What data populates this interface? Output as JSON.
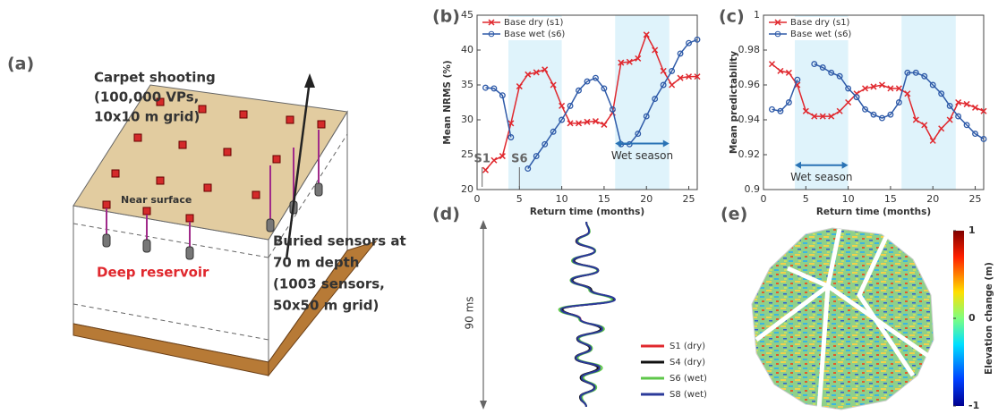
{
  "panel_a": {
    "label": "(a)",
    "shooting": [
      "Carpet shooting",
      "(100,000 VPs,",
      "10x10 m grid)"
    ],
    "near_surface": "Near surface",
    "deep_reservoir": "Deep reservoir",
    "buried": [
      "Buried sensors at",
      "70 m depth",
      "(1003 sensors,",
      "50x50 m grid)"
    ]
  },
  "chart_data": [
    {
      "type": "line",
      "label": "(b)",
      "xlabel": "Return time (months)",
      "ylabel": "Mean NRMS (%)",
      "x": [
        1,
        2,
        3,
        4,
        5,
        6,
        7,
        8,
        9,
        10,
        11,
        12,
        13,
        14,
        15,
        16,
        17,
        18,
        19,
        20,
        21,
        22,
        23,
        24,
        25,
        26
      ],
      "xlim": [
        0,
        26
      ],
      "xticks": [
        0,
        5,
        10,
        15,
        20,
        25
      ],
      "ylim": [
        20,
        45
      ],
      "yticks": [
        20,
        25,
        30,
        35,
        40,
        45
      ],
      "shaded": [
        [
          3.7,
          10
        ],
        [
          16.3,
          22.7
        ]
      ],
      "shade_color": "#dff3fb",
      "annotations": [
        "S1",
        "S6",
        "Wet season"
      ],
      "series": [
        {
          "name": "Base dry (s1)",
          "color": "#e0282e",
          "marker": "x",
          "values": [
            22.8,
            24.2,
            24.8,
            29.5,
            34.8,
            36.5,
            36.8,
            37.2,
            35,
            32,
            29.5,
            29.5,
            29.7,
            29.8,
            29.3,
            31,
            38.2,
            38.3,
            38.8,
            42.2,
            40,
            37,
            35,
            36,
            36.2,
            36.2
          ]
        },
        {
          "name": "Base wet (s6)",
          "color": "#2e5aa8",
          "marker": "o",
          "values": [
            34.6,
            34.5,
            33.5,
            27.5,
            null,
            23,
            24.8,
            26.5,
            28.3,
            30,
            32,
            34.2,
            35.5,
            36,
            34.5,
            31.5,
            26.5,
            26.5,
            28,
            30.5,
            33,
            35,
            37,
            39.5,
            41,
            41.5
          ]
        }
      ]
    },
    {
      "type": "line",
      "label": "(c)",
      "xlabel": "Return time (months)",
      "ylabel": "Mean predictability",
      "x": [
        1,
        2,
        3,
        4,
        5,
        6,
        7,
        8,
        9,
        10,
        11,
        12,
        13,
        14,
        15,
        16,
        17,
        18,
        19,
        20,
        21,
        22,
        23,
        24,
        25,
        26
      ],
      "xlim": [
        0,
        26
      ],
      "xticks": [
        0,
        5,
        10,
        15,
        20,
        25
      ],
      "ylim": [
        0.9,
        1
      ],
      "yticks": [
        0.9,
        0.92,
        0.94,
        0.96,
        0.98,
        1
      ],
      "shaded": [
        [
          3.7,
          10
        ],
        [
          16.3,
          22.7
        ]
      ],
      "shade_color": "#dff3fb",
      "annotations": [
        "Wet season"
      ],
      "series": [
        {
          "name": "Base dry (s1)",
          "color": "#e0282e",
          "marker": "x",
          "values": [
            0.972,
            0.968,
            0.967,
            0.96,
            0.945,
            0.942,
            0.942,
            0.942,
            0.945,
            0.95,
            0.955,
            0.958,
            0.959,
            0.96,
            0.958,
            0.958,
            0.955,
            0.94,
            0.937,
            0.928,
            0.935,
            0.94,
            0.95,
            0.949,
            0.947,
            0.945
          ]
        },
        {
          "name": "Base wet (s6)",
          "color": "#2e5aa8",
          "marker": "o",
          "values": [
            0.946,
            0.945,
            0.95,
            0.963,
            null,
            0.972,
            0.97,
            0.967,
            0.965,
            0.958,
            0.953,
            0.946,
            0.943,
            0.941,
            0.943,
            0.95,
            0.967,
            0.967,
            0.965,
            0.96,
            0.955,
            0.948,
            0.942,
            0.937,
            0.932,
            0.929
          ]
        }
      ]
    },
    {
      "type": "traces",
      "label": "(d)",
      "ylabel": "90 ms",
      "series": [
        {
          "name": "S1 (dry)",
          "color": "#e0282e",
          "values": [
            0,
            0.1,
            -0.35,
            0.3,
            -0.45,
            0.4,
            -0.5,
            0.15,
            0.95,
            -0.85,
            -0.2,
            0.55,
            -0.3,
            0.15,
            -0.35,
            0.45,
            -0.15,
            0.3,
            -0.2,
            0
          ]
        },
        {
          "name": "S4 (dry)",
          "color": "#111111",
          "values": [
            0,
            0.1,
            -0.35,
            0.3,
            -0.42,
            0.42,
            -0.48,
            0.18,
            0.93,
            -0.83,
            -0.22,
            0.5,
            -0.32,
            0.12,
            -0.38,
            0.4,
            -0.2,
            0.28,
            -0.22,
            0
          ]
        },
        {
          "name": "S6 (wet)",
          "color": "#5ec74a",
          "values": [
            0,
            0.12,
            -0.3,
            0.32,
            -0.5,
            0.38,
            -0.55,
            0.1,
            0.9,
            -0.95,
            -0.25,
            0.62,
            -0.25,
            0.2,
            -0.3,
            0.55,
            -0.1,
            0.35,
            -0.15,
            0
          ]
        },
        {
          "name": "S8 (wet)",
          "color": "#2b3a9a",
          "values": [
            0,
            0.1,
            -0.33,
            0.3,
            -0.46,
            0.41,
            -0.52,
            0.14,
            1,
            -0.88,
            -0.21,
            0.56,
            -0.3,
            0.16,
            -0.36,
            0.47,
            -0.16,
            0.3,
            -0.2,
            0
          ]
        }
      ]
    },
    {
      "type": "colorbar",
      "label": "(e)",
      "ylabel": "Elevation change (m)",
      "ylim": [
        -1,
        1
      ],
      "yticks": [
        -1,
        0,
        1
      ]
    }
  ]
}
